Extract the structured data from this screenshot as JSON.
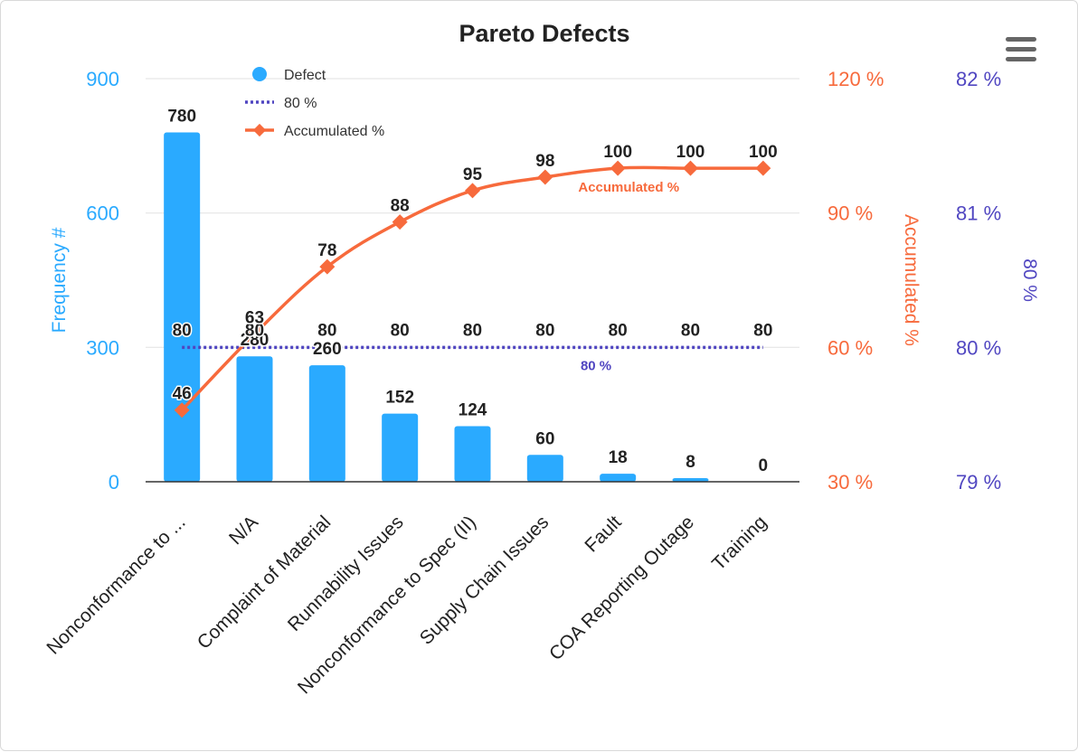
{
  "chart_data": {
    "type": "bar",
    "title": "Pareto Defects",
    "categories": [
      "Nonconformance to ...",
      "N/A",
      "Complaint of Material",
      "Runnability Issues",
      "Nonconformance to Spec (II)",
      "Supply Chain Issues",
      "Fault",
      "COA Reporting Outage",
      "Training"
    ],
    "series": [
      {
        "name": "Defect",
        "type": "bar",
        "axis": "left",
        "color": "#2aaaff",
        "values": [
          780,
          280,
          260,
          152,
          124,
          60,
          18,
          8,
          0
        ]
      },
      {
        "name": "80 %",
        "type": "dotted-line",
        "axis": "right2",
        "color": "#5046c1",
        "values": [
          80,
          80,
          80,
          80,
          80,
          80,
          80,
          80,
          80
        ]
      },
      {
        "name": "Accumulated %",
        "type": "line",
        "axis": "right1",
        "color": "#f76a3c",
        "values": [
          46,
          63,
          78,
          88,
          95,
          98,
          100,
          100,
          100
        ]
      }
    ],
    "axes": {
      "left": {
        "title": "Frequency #",
        "ylim": [
          0,
          900
        ],
        "ticks": [
          "0",
          "300",
          "600",
          "900"
        ],
        "color": "#2aaaff"
      },
      "right1": {
        "title": "Accumulated %",
        "ylim": [
          30,
          120
        ],
        "ticks": [
          "30 %",
          "60 %",
          "90 %",
          "120 %"
        ],
        "color": "#f76a3c"
      },
      "right2": {
        "title": "80 %",
        "ylim": [
          79,
          82
        ],
        "ticks": [
          "79 %",
          "80 %",
          "81 %",
          "82 %"
        ],
        "color": "#5046c1"
      }
    },
    "series_tags": {
      "accumulated": "Accumulated %",
      "eighty": "80 %"
    },
    "legend": {
      "position": "top-left",
      "items": [
        "Defect",
        "80 %",
        "Accumulated %"
      ]
    },
    "grid": true
  },
  "menu": {
    "icon": "hamburger-menu-icon"
  }
}
